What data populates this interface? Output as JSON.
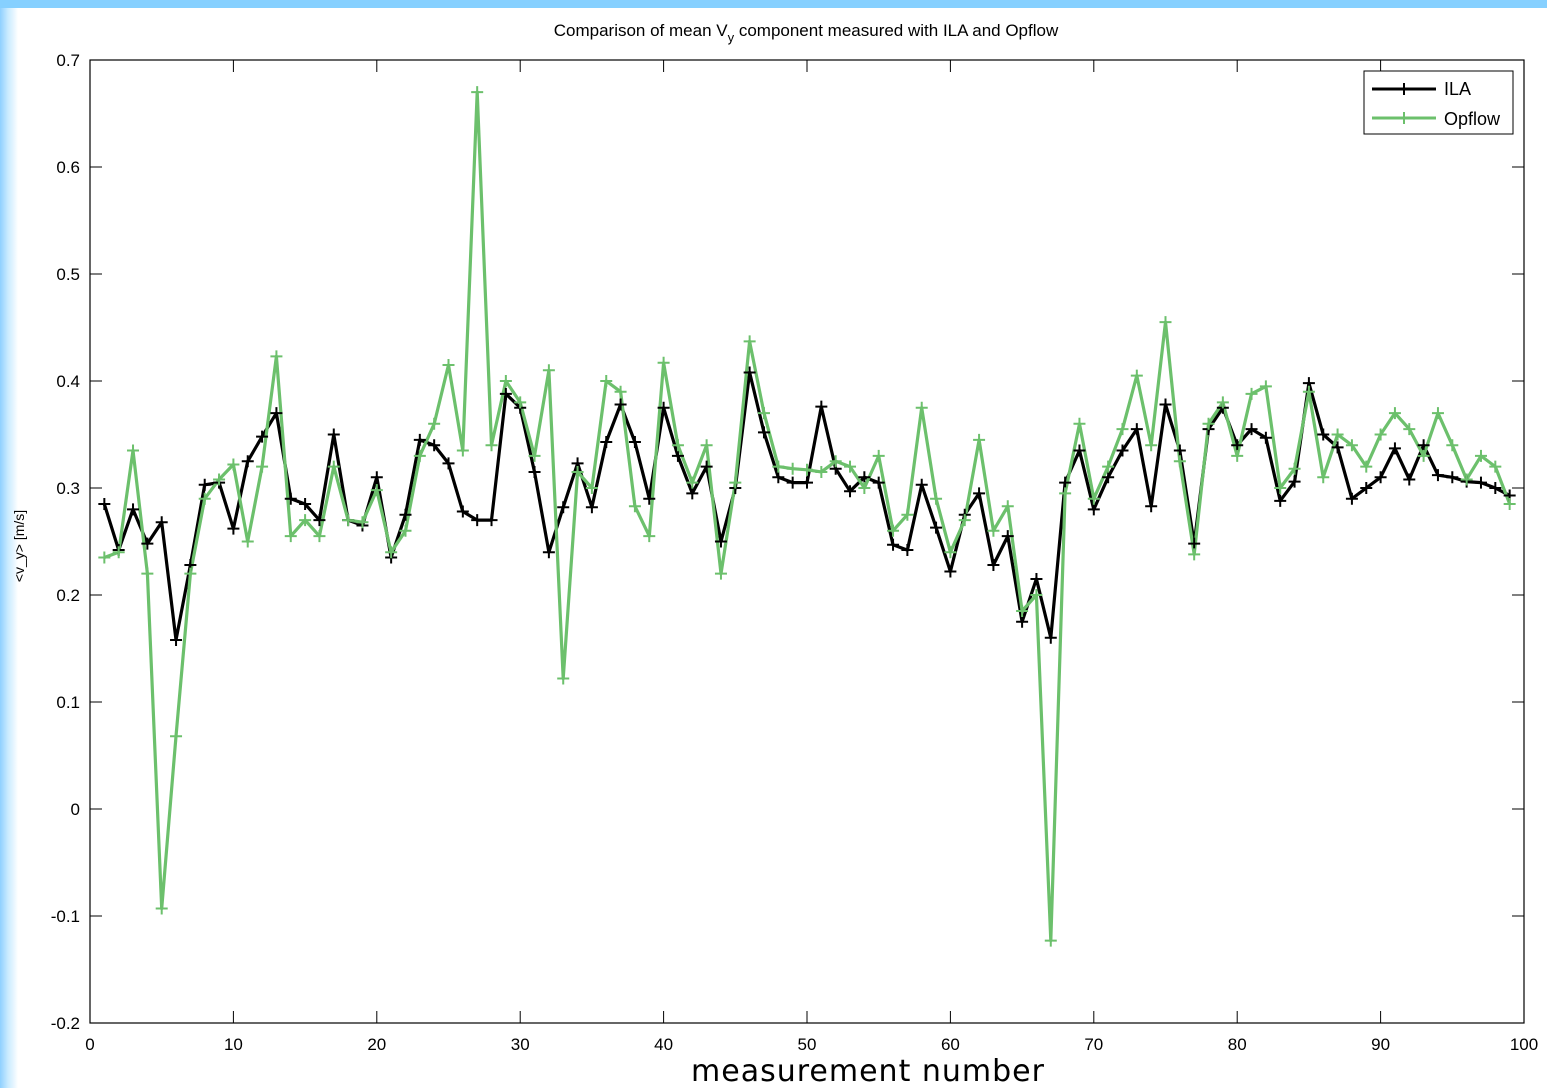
{
  "chart_data": {
    "type": "line",
    "title": "Comparison of mean V component measured with ILA and Opflow",
    "title_subscript": "y",
    "xlabel": "measurement number",
    "ylabel": "<v_y> [m/s]",
    "xlim": [
      0,
      100
    ],
    "ylim": [
      -0.2,
      0.7
    ],
    "xticks": [
      0,
      10,
      20,
      30,
      40,
      50,
      60,
      70,
      80,
      90,
      100
    ],
    "yticks": [
      -0.2,
      -0.1,
      0,
      0.1,
      0.2,
      0.3,
      0.4,
      0.5,
      0.6,
      0.7
    ],
    "legend_position": "top-right",
    "grid": false,
    "series": [
      {
        "name": "ILA",
        "color": "#000000",
        "x": [
          1,
          2,
          3,
          4,
          5,
          6,
          7,
          8,
          9,
          10,
          11,
          12,
          13,
          14,
          15,
          16,
          17,
          18,
          19,
          20,
          21,
          22,
          23,
          24,
          25,
          26,
          27,
          28,
          29,
          30,
          31,
          32,
          33,
          34,
          35,
          36,
          37,
          38,
          39,
          40,
          41,
          42,
          43,
          44,
          45,
          46,
          47,
          48,
          49,
          50,
          51,
          52,
          53,
          54,
          55,
          56,
          57,
          58,
          59,
          60,
          61,
          62,
          63,
          64,
          65,
          66,
          67,
          68,
          69,
          70,
          71,
          72,
          73,
          74,
          75,
          76,
          77,
          78,
          79,
          80,
          81,
          82,
          83,
          84,
          85,
          86,
          87,
          88,
          89,
          90,
          91,
          92,
          93,
          94,
          95,
          96,
          97,
          98,
          99
        ],
        "values": [
          0.285,
          0.242,
          0.28,
          0.248,
          0.268,
          0.158,
          0.228,
          0.303,
          0.305,
          0.262,
          0.325,
          0.348,
          0.37,
          0.29,
          0.285,
          0.27,
          0.35,
          0.27,
          0.265,
          0.31,
          0.235,
          0.275,
          0.345,
          0.34,
          0.323,
          0.278,
          0.27,
          0.27,
          0.388,
          0.375,
          0.315,
          0.24,
          0.282,
          0.323,
          0.282,
          0.343,
          0.378,
          0.343,
          0.29,
          0.375,
          0.33,
          0.295,
          0.32,
          0.25,
          0.3,
          0.408,
          0.352,
          0.31,
          0.305,
          0.305,
          0.376,
          0.318,
          0.297,
          0.31,
          0.305,
          0.247,
          0.242,
          0.303,
          0.263,
          0.222,
          0.275,
          0.295,
          0.228,
          0.255,
          0.175,
          0.215,
          0.16,
          0.305,
          0.335,
          0.28,
          0.31,
          0.335,
          0.355,
          0.283,
          0.378,
          0.335,
          0.248,
          0.355,
          0.375,
          0.34,
          0.355,
          0.347,
          0.288,
          0.306,
          0.398,
          0.35,
          0.338,
          0.29,
          0.3,
          0.31,
          0.337,
          0.308,
          0.34,
          0.312,
          0.31,
          0.306,
          0.305,
          0.3,
          0.293
        ]
      },
      {
        "name": "Opflow",
        "color": "#6cc06c",
        "x": [
          1,
          2,
          3,
          4,
          5,
          6,
          7,
          8,
          9,
          10,
          11,
          12,
          13,
          14,
          15,
          16,
          17,
          18,
          19,
          20,
          21,
          22,
          23,
          24,
          25,
          26,
          27,
          28,
          29,
          30,
          31,
          32,
          33,
          34,
          35,
          36,
          37,
          38,
          39,
          40,
          41,
          42,
          43,
          44,
          45,
          46,
          47,
          48,
          49,
          50,
          51,
          52,
          53,
          54,
          55,
          56,
          57,
          58,
          59,
          60,
          61,
          62,
          63,
          64,
          65,
          66,
          67,
          68,
          69,
          70,
          71,
          72,
          73,
          74,
          75,
          76,
          77,
          78,
          79,
          80,
          81,
          82,
          83,
          84,
          85,
          86,
          87,
          88,
          89,
          90,
          91,
          92,
          93,
          94,
          95,
          96,
          97,
          98,
          99
        ],
        "values": [
          0.235,
          0.24,
          0.335,
          0.22,
          -0.093,
          0.068,
          0.22,
          0.29,
          0.308,
          0.322,
          0.25,
          0.32,
          0.423,
          0.255,
          0.27,
          0.255,
          0.32,
          0.27,
          0.268,
          0.298,
          0.24,
          0.26,
          0.33,
          0.36,
          0.415,
          0.335,
          0.67,
          0.34,
          0.4,
          0.38,
          0.33,
          0.41,
          0.122,
          0.315,
          0.3,
          0.4,
          0.39,
          0.283,
          0.255,
          0.417,
          0.34,
          0.305,
          0.34,
          0.22,
          0.305,
          0.437,
          0.37,
          0.32,
          0.318,
          0.317,
          0.315,
          0.325,
          0.32,
          0.3,
          0.33,
          0.26,
          0.275,
          0.375,
          0.29,
          0.24,
          0.27,
          0.345,
          0.26,
          0.283,
          0.185,
          0.2,
          -0.123,
          0.295,
          0.36,
          0.29,
          0.32,
          0.355,
          0.405,
          0.34,
          0.455,
          0.325,
          0.238,
          0.36,
          0.38,
          0.33,
          0.388,
          0.395,
          0.3,
          0.318,
          0.39,
          0.31,
          0.35,
          0.34,
          0.32,
          0.35,
          0.37,
          0.355,
          0.33,
          0.37,
          0.34,
          0.308,
          0.33,
          0.32,
          0.285
        ]
      }
    ]
  }
}
